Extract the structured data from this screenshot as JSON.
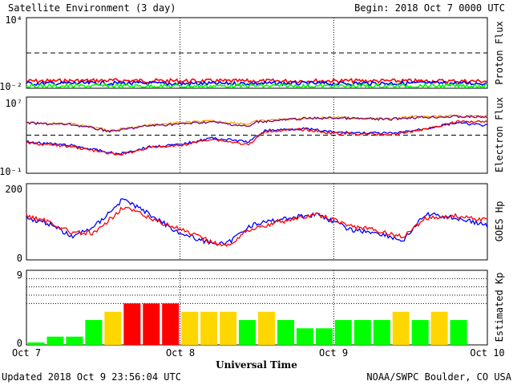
{
  "header": {
    "title": "Satellite Environment (3 day)",
    "begin": "Begin:  2018 Oct 7 0000 UTC"
  },
  "footer": {
    "updated": "Updated 2018 Oct  9 23:56:04 UTC",
    "source": "NOAA/SWPC Boulder, CO USA",
    "xlabel": "Universal Time"
  },
  "colors": {
    "red": "#ff0000",
    "blue": "#0000ff",
    "green": "#00ff00",
    "orange": "#ffa500",
    "purple": "#7a0077",
    "yellow": "#ffd700"
  },
  "chart_data": [
    {
      "type": "line",
      "panel": "proton",
      "ylabel": "Proton Flux",
      "ylim": [
        0.01,
        10000
      ],
      "yscale": "log",
      "yticks": [
        "10⁴",
        "10⁻²"
      ],
      "threshold": 10,
      "x_range_days": [
        0,
        3
      ],
      "series": [
        {
          "color": "red",
          "points": [
            [
              0,
              0.04
            ],
            [
              0.5,
              0.045
            ],
            [
              1,
              0.042
            ],
            [
              1.5,
              0.04
            ],
            [
              2,
              0.043
            ],
            [
              2.5,
              0.041
            ],
            [
              3,
              0.04
            ]
          ]
        },
        {
          "color": "blue",
          "points": [
            [
              0,
              0.025
            ],
            [
              0.5,
              0.027
            ],
            [
              1,
              0.024
            ],
            [
              1.5,
              0.026
            ],
            [
              2,
              0.025
            ],
            [
              2.5,
              0.027
            ],
            [
              3,
              0.026
            ]
          ]
        },
        {
          "color": "green",
          "points": [
            [
              0,
              0.015
            ],
            [
              0.5,
              0.016
            ],
            [
              1,
              0.015
            ],
            [
              1.5,
              0.016
            ],
            [
              2,
              0.015
            ],
            [
              2.5,
              0.016
            ],
            [
              3,
              0.016
            ]
          ]
        }
      ]
    },
    {
      "type": "line",
      "panel": "electron",
      "ylabel": "Electron Flux",
      "ylim": [
        0.1,
        10000000
      ],
      "yscale": "log",
      "yticks": [
        "10⁷",
        "10⁻¹"
      ],
      "threshold": 1000,
      "x_range_days": [
        0,
        3
      ],
      "series": [
        {
          "color": "orange",
          "points": [
            [
              0,
              20000
            ],
            [
              0.3,
              15000
            ],
            [
              0.55,
              3000
            ],
            [
              0.8,
              12000
            ],
            [
              1,
              20000
            ],
            [
              1.2,
              30000
            ],
            [
              1.45,
              15000
            ],
            [
              1.5,
              30000
            ],
            [
              1.8,
              60000
            ],
            [
              2,
              70000
            ],
            [
              2.35,
              50000
            ],
            [
              2.5,
              80000
            ],
            [
              2.8,
              100000
            ],
            [
              3,
              90000
            ]
          ]
        },
        {
          "color": "purple",
          "points": [
            [
              0,
              18000
            ],
            [
              0.3,
              13000
            ],
            [
              0.55,
              2500
            ],
            [
              0.8,
              10000
            ],
            [
              1,
              15000
            ],
            [
              1.2,
              25000
            ],
            [
              1.45,
              8000
            ],
            [
              1.5,
              25000
            ],
            [
              1.8,
              55000
            ],
            [
              2,
              65000
            ],
            [
              2.35,
              45000
            ],
            [
              2.5,
              70000
            ],
            [
              2.8,
              90000
            ],
            [
              3,
              80000
            ]
          ]
        },
        {
          "color": "blue",
          "points": [
            [
              0,
              200
            ],
            [
              0.3,
              80
            ],
            [
              0.6,
              10
            ],
            [
              0.8,
              60
            ],
            [
              1,
              100
            ],
            [
              1.2,
              500
            ],
            [
              1.45,
              200
            ],
            [
              1.55,
              3000
            ],
            [
              1.8,
              5000
            ],
            [
              2,
              2000
            ],
            [
              2.4,
              1500
            ],
            [
              2.6,
              5000
            ],
            [
              2.8,
              20000
            ],
            [
              3,
              10000
            ]
          ]
        },
        {
          "color": "red",
          "points": [
            [
              0,
              150
            ],
            [
              0.3,
              60
            ],
            [
              0.6,
              8
            ],
            [
              0.8,
              50
            ],
            [
              1,
              80
            ],
            [
              1.2,
              400
            ],
            [
              1.45,
              100
            ],
            [
              1.55,
              2500
            ],
            [
              1.8,
              4000
            ],
            [
              2,
              1500
            ],
            [
              2.4,
              1200
            ],
            [
              2.6,
              4500
            ],
            [
              2.8,
              25000
            ],
            [
              3,
              30000
            ]
          ]
        }
      ]
    },
    {
      "type": "line",
      "panel": "goes_hp",
      "ylabel": "GOES Hp",
      "ylim": [
        0,
        200
      ],
      "yticks": [
        "200",
        "0"
      ],
      "x_range_days": [
        0,
        3
      ],
      "series": [
        {
          "color": "blue",
          "points": [
            [
              0,
              110
            ],
            [
              0.15,
              95
            ],
            [
              0.3,
              60
            ],
            [
              0.45,
              90
            ],
            [
              0.63,
              160
            ],
            [
              0.8,
              120
            ],
            [
              1,
              70
            ],
            [
              1.15,
              50
            ],
            [
              1.3,
              40
            ],
            [
              1.45,
              90
            ],
            [
              1.7,
              110
            ],
            [
              1.9,
              120
            ],
            [
              2.1,
              80
            ],
            [
              2.3,
              70
            ],
            [
              2.45,
              50
            ],
            [
              2.6,
              120
            ],
            [
              2.8,
              110
            ],
            [
              3,
              90
            ]
          ]
        },
        {
          "color": "red",
          "points": [
            [
              0,
              115
            ],
            [
              0.15,
              100
            ],
            [
              0.3,
              70
            ],
            [
              0.45,
              70
            ],
            [
              0.63,
              140
            ],
            [
              0.8,
              110
            ],
            [
              1,
              80
            ],
            [
              1.15,
              55
            ],
            [
              1.3,
              35
            ],
            [
              1.45,
              80
            ],
            [
              1.7,
              105
            ],
            [
              1.9,
              118
            ],
            [
              2.1,
              90
            ],
            [
              2.3,
              75
            ],
            [
              2.45,
              60
            ],
            [
              2.6,
              110
            ],
            [
              2.8,
              115
            ],
            [
              3,
              105
            ]
          ]
        }
      ]
    },
    {
      "type": "bar",
      "panel": "kp",
      "ylabel": "Estimated Kp",
      "ylim": [
        0,
        9
      ],
      "yticks": [
        "9",
        "0"
      ],
      "xticks": [
        "Oct 7",
        "Oct 8",
        "Oct 9",
        "Oct 10"
      ],
      "values": [
        0.3,
        1,
        1,
        3,
        4,
        5,
        5,
        5,
        4,
        4,
        4,
        3,
        4,
        3,
        2,
        2,
        3,
        3,
        3,
        4,
        3,
        4,
        3,
        0
      ],
      "colors": [
        "green",
        "green",
        "green",
        "green",
        "yellow",
        "red",
        "red",
        "red",
        "yellow",
        "yellow",
        "yellow",
        "green",
        "yellow",
        "green",
        "green",
        "green",
        "green",
        "green",
        "green",
        "yellow",
        "green",
        "yellow",
        "green",
        "green"
      ]
    }
  ]
}
